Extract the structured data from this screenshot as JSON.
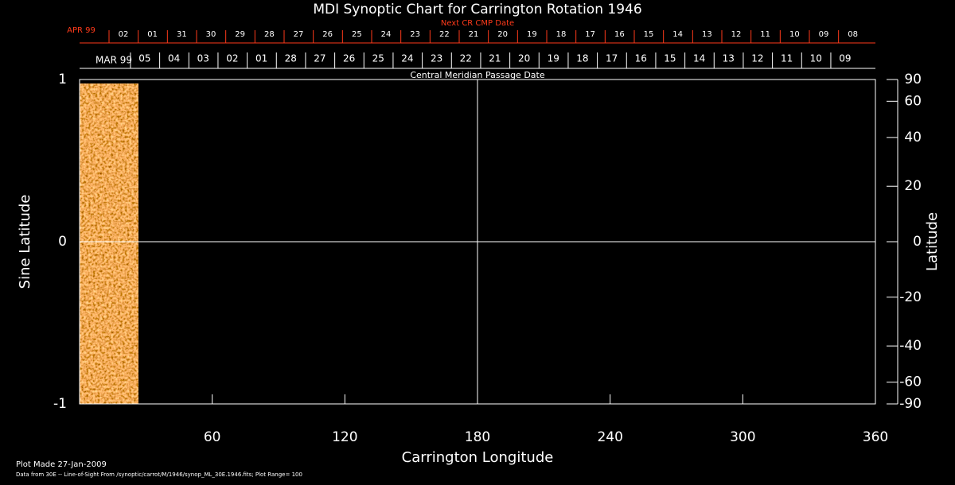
{
  "chart_data": {
    "type": "synoptic",
    "title": "MDI Synoptic Chart for Carrington Rotation 1946",
    "xlabel": "Carrington Longitude",
    "ylabel": "Sine Latitude",
    "y2label": "Latitude",
    "xlim": [
      0,
      360
    ],
    "xticks": [
      60,
      120,
      180,
      240,
      300,
      360
    ],
    "ylim": [
      -1,
      1
    ],
    "yticks": [
      -1,
      0,
      1
    ],
    "y2scale": "sine",
    "y2ticks": [
      90,
      60,
      40,
      20,
      0,
      -20,
      -40,
      -60,
      -90
    ],
    "grid_x": [
      180
    ],
    "grid_y": [
      0
    ],
    "data_extent": [
      0,
      26.5
    ],
    "cmp_axis": {
      "label": "Central Meridian Passage Date",
      "month": "MAR 99",
      "labels": [
        "05",
        "04",
        "03",
        "02",
        "01",
        "28",
        "27",
        "26",
        "25",
        "24",
        "23",
        "22",
        "21",
        "20",
        "19",
        "18",
        "17",
        "16",
        "15",
        "14",
        "13",
        "12",
        "11",
        "10",
        "09"
      ],
      "x": [
        29.5,
        42.7,
        55.9,
        69.1,
        82.3,
        95.5,
        108.7,
        121.9,
        135.1,
        148.3,
        161.5,
        174.7,
        187.9,
        201.1,
        214.3,
        227.5,
        240.7,
        253.9,
        267.1,
        280.3,
        293.5,
        306.7,
        319.9,
        333.1,
        346.3
      ]
    },
    "next_axis": {
      "label": "Next CR CMP Date",
      "month": "APR 99",
      "color": "#ff3a1a",
      "labels": [
        "02",
        "01",
        "31",
        "30",
        "29",
        "28",
        "27",
        "26",
        "25",
        "24",
        "23",
        "22",
        "21",
        "20",
        "19",
        "18",
        "17",
        "16",
        "15",
        "14",
        "13",
        "12",
        "11",
        "10",
        "09",
        "08"
      ],
      "x": [
        19.8,
        33,
        46.2,
        59.4,
        72.6,
        85.8,
        99,
        112.2,
        125.4,
        138.6,
        151.8,
        165,
        178.2,
        191.4,
        204.6,
        217.8,
        231,
        244.2,
        257.4,
        270.6,
        283.8,
        297,
        310.2,
        323.4,
        336.6,
        349.8
      ]
    },
    "footer": [
      "Plot Made 27-Jan-2009",
      "Data from 30E -- Line-of-Sight From /synoptic/carrot/M/1946/synop_ML_30E.1946.fits; Plot Range=  100"
    ]
  }
}
